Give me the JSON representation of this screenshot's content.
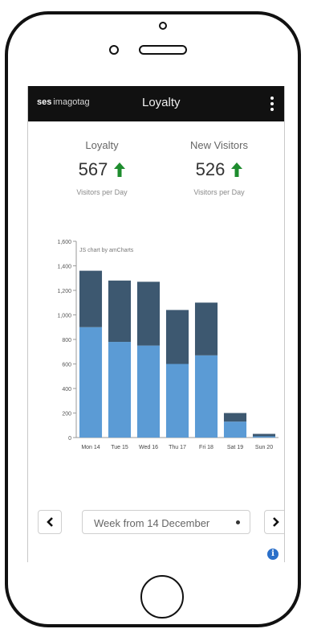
{
  "header": {
    "brand_bold": "ses",
    "brand_rest": "imagotag",
    "title": "Loyalty",
    "menu_icon": "more-vert-icon"
  },
  "kpis": [
    {
      "label": "Loyalty",
      "value": "567",
      "trend": "up",
      "sublabel": "Visitors per Day"
    },
    {
      "label": "New Visitors",
      "value": "526",
      "trend": "up",
      "sublabel": "Visitors per Day"
    }
  ],
  "colors": {
    "returning": "#3d5870",
    "new": "#5b9bd5",
    "trend_up": "#1e8c2e",
    "info": "#2a6fc9"
  },
  "chart_data": {
    "type": "bar",
    "stacked": true,
    "watermark": "JS chart by amCharts",
    "categories": [
      "Mon 14",
      "Tue 15",
      "Wed 16",
      "Thu 17",
      "Fri 18",
      "Sat 19",
      "Sun 20"
    ],
    "series": [
      {
        "values": [
          900,
          780,
          750,
          600,
          670,
          130,
          10
        ]
      },
      {
        "values": [
          460,
          500,
          520,
          440,
          430,
          70,
          20
        ]
      }
    ],
    "yticks": [
      "0",
      "200",
      "400",
      "600",
      "800",
      "1,000",
      "1,200",
      "1,400",
      "1,600"
    ],
    "ylim": [
      0,
      1600
    ],
    "grid": false,
    "legend": false
  },
  "nav": {
    "prev_icon": "chevron-left-icon",
    "next_icon": "chevron-right-icon",
    "week_label": "Week from 14 December"
  },
  "footer": {
    "info_icon": "info-icon",
    "info_glyph": "i"
  }
}
